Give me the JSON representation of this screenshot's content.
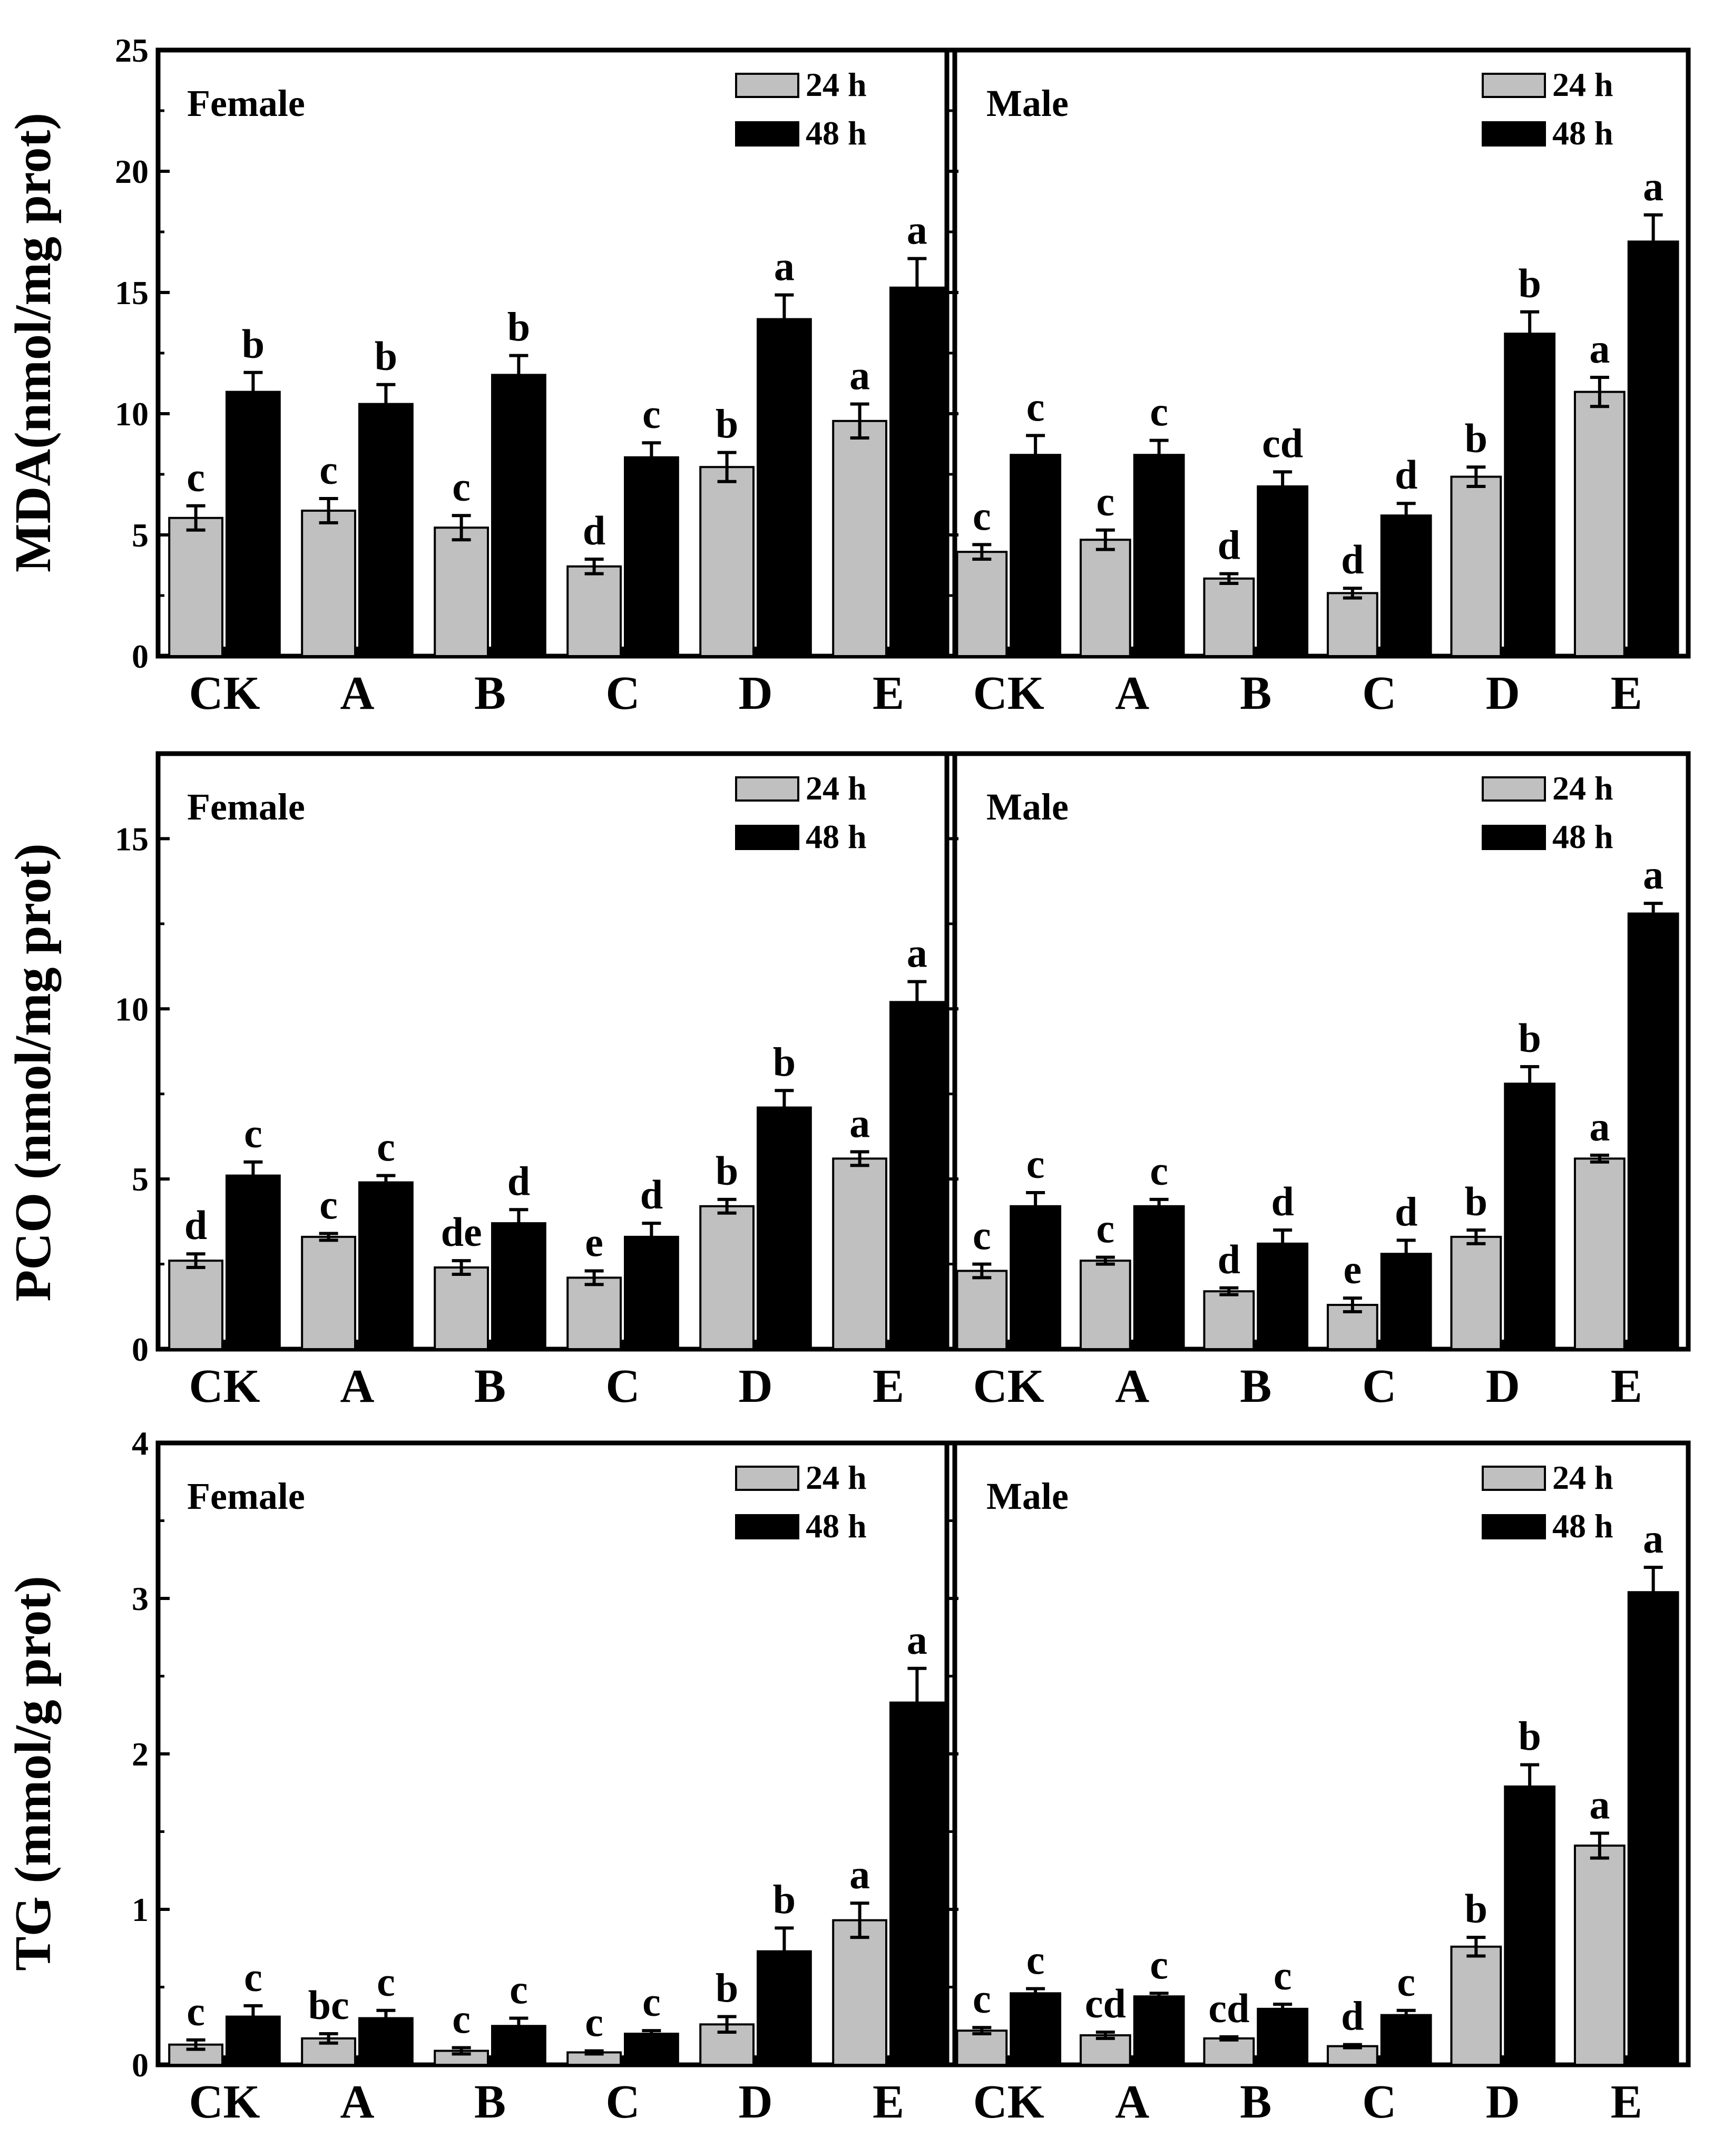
{
  "rows": [
    {
      "ylabel": "MDA(nmol/mg prot)",
      "ylim": [
        0,
        25
      ],
      "yticks": [
        "0",
        "5",
        "10",
        "15",
        "20",
        "25"
      ]
    },
    {
      "ylabel": "PCO (nmol/mg prot)",
      "ylim": [
        0,
        17.5
      ],
      "yticks": [
        "0",
        "5",
        "10",
        "15"
      ]
    },
    {
      "ylabel": "TG (mmol/g prot)",
      "ylim": [
        0,
        4
      ],
      "yticks": [
        "0",
        "1",
        "2",
        "3",
        "4"
      ]
    }
  ],
  "colors": {
    "24 h": "#c0c0c0",
    "48 h": "#000000"
  },
  "chart_data": [
    {
      "type": "bar",
      "title": "Female",
      "ylabel": "MDA(nmol/mg prot)",
      "ylim": [
        0,
        25
      ],
      "grid": false,
      "legend": "top-right",
      "categories": [
        "CK",
        "A",
        "B",
        "C",
        "D",
        "E"
      ],
      "series": [
        {
          "name": "24 h",
          "values": [
            5.7,
            6.0,
            5.3,
            3.7,
            7.8,
            9.7
          ],
          "errors": [
            0.5,
            0.5,
            0.5,
            0.3,
            0.6,
            0.7
          ],
          "labels": [
            "c",
            "c",
            "c",
            "d",
            "b",
            "a"
          ]
        },
        {
          "name": "48 h",
          "values": [
            10.9,
            10.4,
            11.6,
            8.2,
            13.9,
            15.2
          ],
          "errors": [
            0.8,
            0.8,
            0.8,
            0.6,
            1.0,
            1.2
          ],
          "labels": [
            "b",
            "b",
            "b",
            "c",
            "a",
            "a"
          ]
        }
      ]
    },
    {
      "type": "bar",
      "title": "Male",
      "ylabel": "MDA(nmol/mg prot)",
      "ylim": [
        0,
        25
      ],
      "grid": false,
      "legend": "top-right",
      "categories": [
        "CK",
        "A",
        "B",
        "C",
        "D",
        "E"
      ],
      "series": [
        {
          "name": "24 h",
          "values": [
            4.3,
            4.8,
            3.2,
            2.6,
            7.4,
            10.9
          ],
          "errors": [
            0.3,
            0.4,
            0.2,
            0.2,
            0.4,
            0.6
          ],
          "labels": [
            "c",
            "c",
            "d",
            "d",
            "b",
            "a"
          ]
        },
        {
          "name": "48 h",
          "values": [
            8.3,
            8.3,
            7.0,
            5.8,
            13.3,
            17.1
          ],
          "errors": [
            0.8,
            0.6,
            0.6,
            0.5,
            0.9,
            1.1
          ],
          "labels": [
            "c",
            "c",
            "cd",
            "d",
            "b",
            "a"
          ]
        }
      ]
    },
    {
      "type": "bar",
      "title": "Female",
      "ylabel": "PCO (nmol/mg prot)",
      "ylim": [
        0,
        17.5
      ],
      "grid": false,
      "legend": "top-right",
      "categories": [
        "CK",
        "A",
        "B",
        "C",
        "D",
        "E"
      ],
      "series": [
        {
          "name": "24 h",
          "values": [
            2.6,
            3.3,
            2.4,
            2.1,
            4.2,
            5.6
          ],
          "errors": [
            0.2,
            0.1,
            0.2,
            0.2,
            0.2,
            0.2
          ],
          "labels": [
            "d",
            "c",
            "de",
            "e",
            "b",
            "a"
          ]
        },
        {
          "name": "48 h",
          "values": [
            5.1,
            4.9,
            3.7,
            3.3,
            7.1,
            10.2
          ],
          "errors": [
            0.4,
            0.2,
            0.4,
            0.4,
            0.5,
            0.6
          ],
          "labels": [
            "c",
            "c",
            "d",
            "d",
            "b",
            "a"
          ]
        }
      ]
    },
    {
      "type": "bar",
      "title": "Male",
      "ylabel": "PCO (nmol/mg prot)",
      "ylim": [
        0,
        17.5
      ],
      "grid": false,
      "legend": "top-right",
      "categories": [
        "CK",
        "A",
        "B",
        "C",
        "D",
        "E"
      ],
      "series": [
        {
          "name": "24 h",
          "values": [
            2.3,
            2.6,
            1.7,
            1.3,
            3.3,
            5.6
          ],
          "errors": [
            0.2,
            0.1,
            0.1,
            0.2,
            0.2,
            0.1
          ],
          "labels": [
            "c",
            "c",
            "d",
            "e",
            "b",
            "a"
          ]
        },
        {
          "name": "48 h",
          "values": [
            4.2,
            4.2,
            3.1,
            2.8,
            7.8,
            12.8
          ],
          "errors": [
            0.4,
            0.2,
            0.4,
            0.4,
            0.5,
            0.3
          ],
          "labels": [
            "c",
            "c",
            "d",
            "d",
            "b",
            "a"
          ]
        }
      ]
    },
    {
      "type": "bar",
      "title": "Female",
      "ylabel": "TG (mmol/g prot)",
      "ylim": [
        0,
        4
      ],
      "grid": false,
      "legend": "top-right",
      "categories": [
        "CK",
        "A",
        "B",
        "C",
        "D",
        "E"
      ],
      "series": [
        {
          "name": "24 h",
          "values": [
            0.13,
            0.17,
            0.09,
            0.08,
            0.26,
            0.93
          ],
          "errors": [
            0.03,
            0.03,
            0.02,
            0.01,
            0.05,
            0.11
          ],
          "labels": [
            "c",
            "bc",
            "c",
            "c",
            "b",
            "a"
          ]
        },
        {
          "name": "48 h",
          "values": [
            0.31,
            0.3,
            0.25,
            0.2,
            0.73,
            2.33
          ],
          "errors": [
            0.07,
            0.05,
            0.05,
            0.02,
            0.15,
            0.22
          ],
          "labels": [
            "c",
            "c",
            "c",
            "c",
            "b",
            "a"
          ]
        }
      ]
    },
    {
      "type": "bar",
      "title": "Male",
      "ylabel": "TG (mmol/g prot)",
      "ylim": [
        0,
        4
      ],
      "grid": false,
      "legend": "top-right",
      "categories": [
        "CK",
        "A",
        "B",
        "C",
        "D",
        "E"
      ],
      "series": [
        {
          "name": "24 h",
          "values": [
            0.22,
            0.19,
            0.17,
            0.12,
            0.76,
            1.41
          ],
          "errors": [
            0.02,
            0.02,
            0.01,
            0.01,
            0.06,
            0.08
          ],
          "labels": [
            "c",
            "cd",
            "cd",
            "d",
            "b",
            "a"
          ]
        },
        {
          "name": "48 h",
          "values": [
            0.46,
            0.44,
            0.36,
            0.32,
            1.79,
            3.04
          ],
          "errors": [
            0.03,
            0.02,
            0.03,
            0.03,
            0.14,
            0.16
          ],
          "labels": [
            "c",
            "c",
            "c",
            "c",
            "b",
            "a"
          ]
        }
      ]
    }
  ]
}
